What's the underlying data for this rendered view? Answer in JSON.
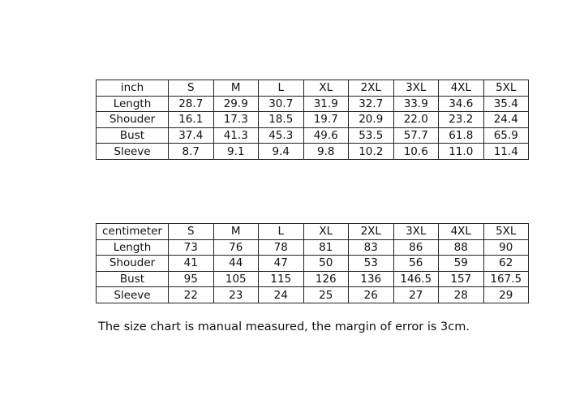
{
  "tables": [
    {
      "unit": "inch",
      "sizes": [
        "S",
        "M",
        "L",
        "XL",
        "2XL",
        "3XL",
        "4XL",
        "5XL"
      ],
      "rows": [
        {
          "label": "Length",
          "values": [
            "28.7",
            "29.9",
            "30.7",
            "31.9",
            "32.7",
            "33.9",
            "34.6",
            "35.4"
          ]
        },
        {
          "label": "Shouder",
          "values": [
            "16.1",
            "17.3",
            "18.5",
            "19.7",
            "20.9",
            "22.0",
            "23.2",
            "24.4"
          ]
        },
        {
          "label": "Bust",
          "values": [
            "37.4",
            "41.3",
            "45.3",
            "49.6",
            "53.5",
            "57.7",
            "61.8",
            "65.9"
          ]
        },
        {
          "label": "Sleeve",
          "values": [
            "8.7",
            "9.1",
            "9.4",
            "9.8",
            "10.2",
            "10.6",
            "11.0",
            "11.4"
          ]
        }
      ]
    },
    {
      "unit": "centimeter",
      "sizes": [
        "S",
        "M",
        "L",
        "XL",
        "2XL",
        "3XL",
        "4XL",
        "5XL"
      ],
      "rows": [
        {
          "label": "Length",
          "values": [
            "73",
            "76",
            "78",
            "81",
            "83",
            "86",
            "88",
            "90"
          ]
        },
        {
          "label": "Shouder",
          "values": [
            "41",
            "44",
            "47",
            "50",
            "53",
            "56",
            "59",
            "62"
          ]
        },
        {
          "label": "Bust",
          "values": [
            "95",
            "105",
            "115",
            "126",
            "136",
            "146.5",
            "157",
            "167.5"
          ]
        },
        {
          "label": "Sleeve",
          "values": [
            "22",
            "23",
            "24",
            "25",
            "26",
            "27",
            "28",
            "29"
          ]
        }
      ]
    }
  ],
  "note": "The size chart is manual measured, the margin of error is 3cm."
}
